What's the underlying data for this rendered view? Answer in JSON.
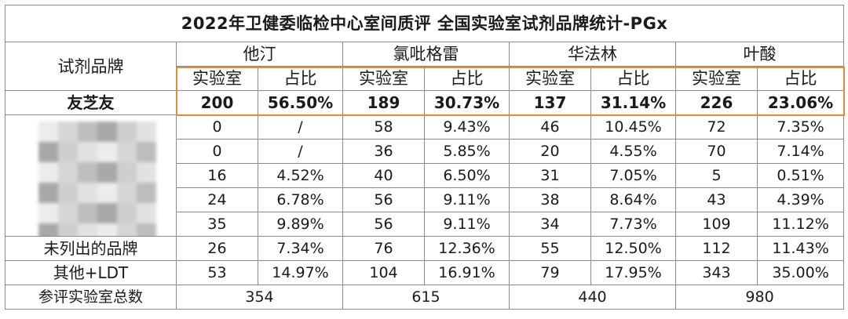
{
  "title": "2022年卫健委临检中心室间质评 全国实验室试剂品牌统计-PGx",
  "brand_header": "试剂品牌",
  "drugs": [
    "他汀",
    "氯吡格雷",
    "华法林",
    "叶酸"
  ],
  "subheaders": {
    "labs": "实验室",
    "ratio": "占比"
  },
  "rows": [
    {
      "brand": "友芝友",
      "bold": true,
      "cells": [
        "200",
        "56.50%",
        "189",
        "30.73%",
        "137",
        "31.14%",
        "226",
        "23.06%"
      ]
    },
    {
      "brand": "",
      "bold": false,
      "cells": [
        "0",
        "/",
        "58",
        "9.43%",
        "46",
        "10.45%",
        "72",
        "7.35%"
      ]
    },
    {
      "brand": "",
      "bold": false,
      "cells": [
        "0",
        "/",
        "36",
        "5.85%",
        "20",
        "4.55%",
        "70",
        "7.14%"
      ]
    },
    {
      "brand": "",
      "bold": false,
      "cells": [
        "16",
        "4.52%",
        "40",
        "6.50%",
        "31",
        "7.05%",
        "5",
        "0.51%"
      ]
    },
    {
      "brand": "",
      "bold": false,
      "cells": [
        "24",
        "6.78%",
        "56",
        "9.11%",
        "38",
        "8.64%",
        "43",
        "4.39%"
      ]
    },
    {
      "brand": "",
      "bold": false,
      "cells": [
        "35",
        "9.89%",
        "56",
        "9.11%",
        "34",
        "7.73%",
        "109",
        "11.12%"
      ]
    },
    {
      "brand": "未列出的品牌",
      "bold": false,
      "cells": [
        "26",
        "7.34%",
        "76",
        "12.36%",
        "55",
        "12.50%",
        "112",
        "11.43%"
      ]
    },
    {
      "brand": "其他+LDT",
      "bold": false,
      "cells": [
        "53",
        "14.97%",
        "104",
        "16.91%",
        "79",
        "17.95%",
        "343",
        "35.00%"
      ]
    }
  ],
  "totals_label": "参评实验室总数",
  "totals": [
    "354",
    "615",
    "440",
    "980"
  ],
  "colors": {
    "highlight": "#e8893a",
    "grid": "#8a8a8a",
    "mosaic": [
      "#ececec",
      "#d6d6d6",
      "#bdbdbd",
      "#a8a8a8",
      "#cfcfcf",
      "#e2e2e2"
    ]
  }
}
